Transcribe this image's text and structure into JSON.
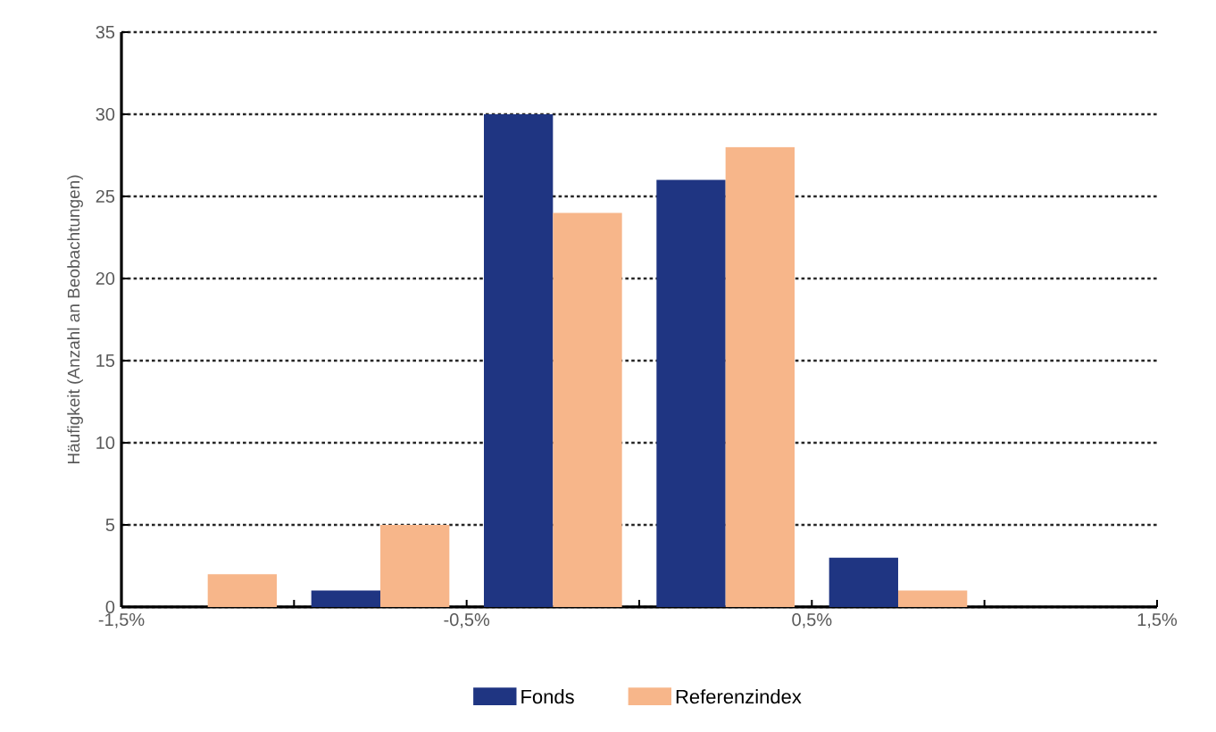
{
  "chart_data": {
    "type": "bar",
    "ylabel": "Häufigkeit (Anzahl an Beobachtungen)",
    "x": [
      -1.25,
      -0.75,
      -0.25,
      0.25,
      0.75,
      1.25
    ],
    "series": [
      {
        "name": "Fonds",
        "color": "#1f3582",
        "values": [
          0,
          1,
          30,
          26,
          3,
          0
        ]
      },
      {
        "name": "Referenzindex",
        "color": "#f7b68a",
        "values": [
          2,
          5,
          24,
          28,
          1,
          0
        ]
      }
    ],
    "xlim": [
      -1.5,
      1.5
    ],
    "xticks": [
      {
        "value": -1.5,
        "label": "-1,5%"
      },
      {
        "value": -1,
        "label": null
      },
      {
        "value": -0.5,
        "label": "-0,5%"
      },
      {
        "value": 0,
        "label": null
      },
      {
        "value": 0.5,
        "label": "0,5%"
      },
      {
        "value": 1,
        "label": null
      },
      {
        "value": 1.5,
        "label": "1,5%"
      }
    ],
    "ylim": [
      0,
      35
    ],
    "yticks": [
      0,
      5,
      10,
      15,
      20,
      25,
      30,
      35
    ],
    "grid": "y",
    "legend": "bottom"
  }
}
